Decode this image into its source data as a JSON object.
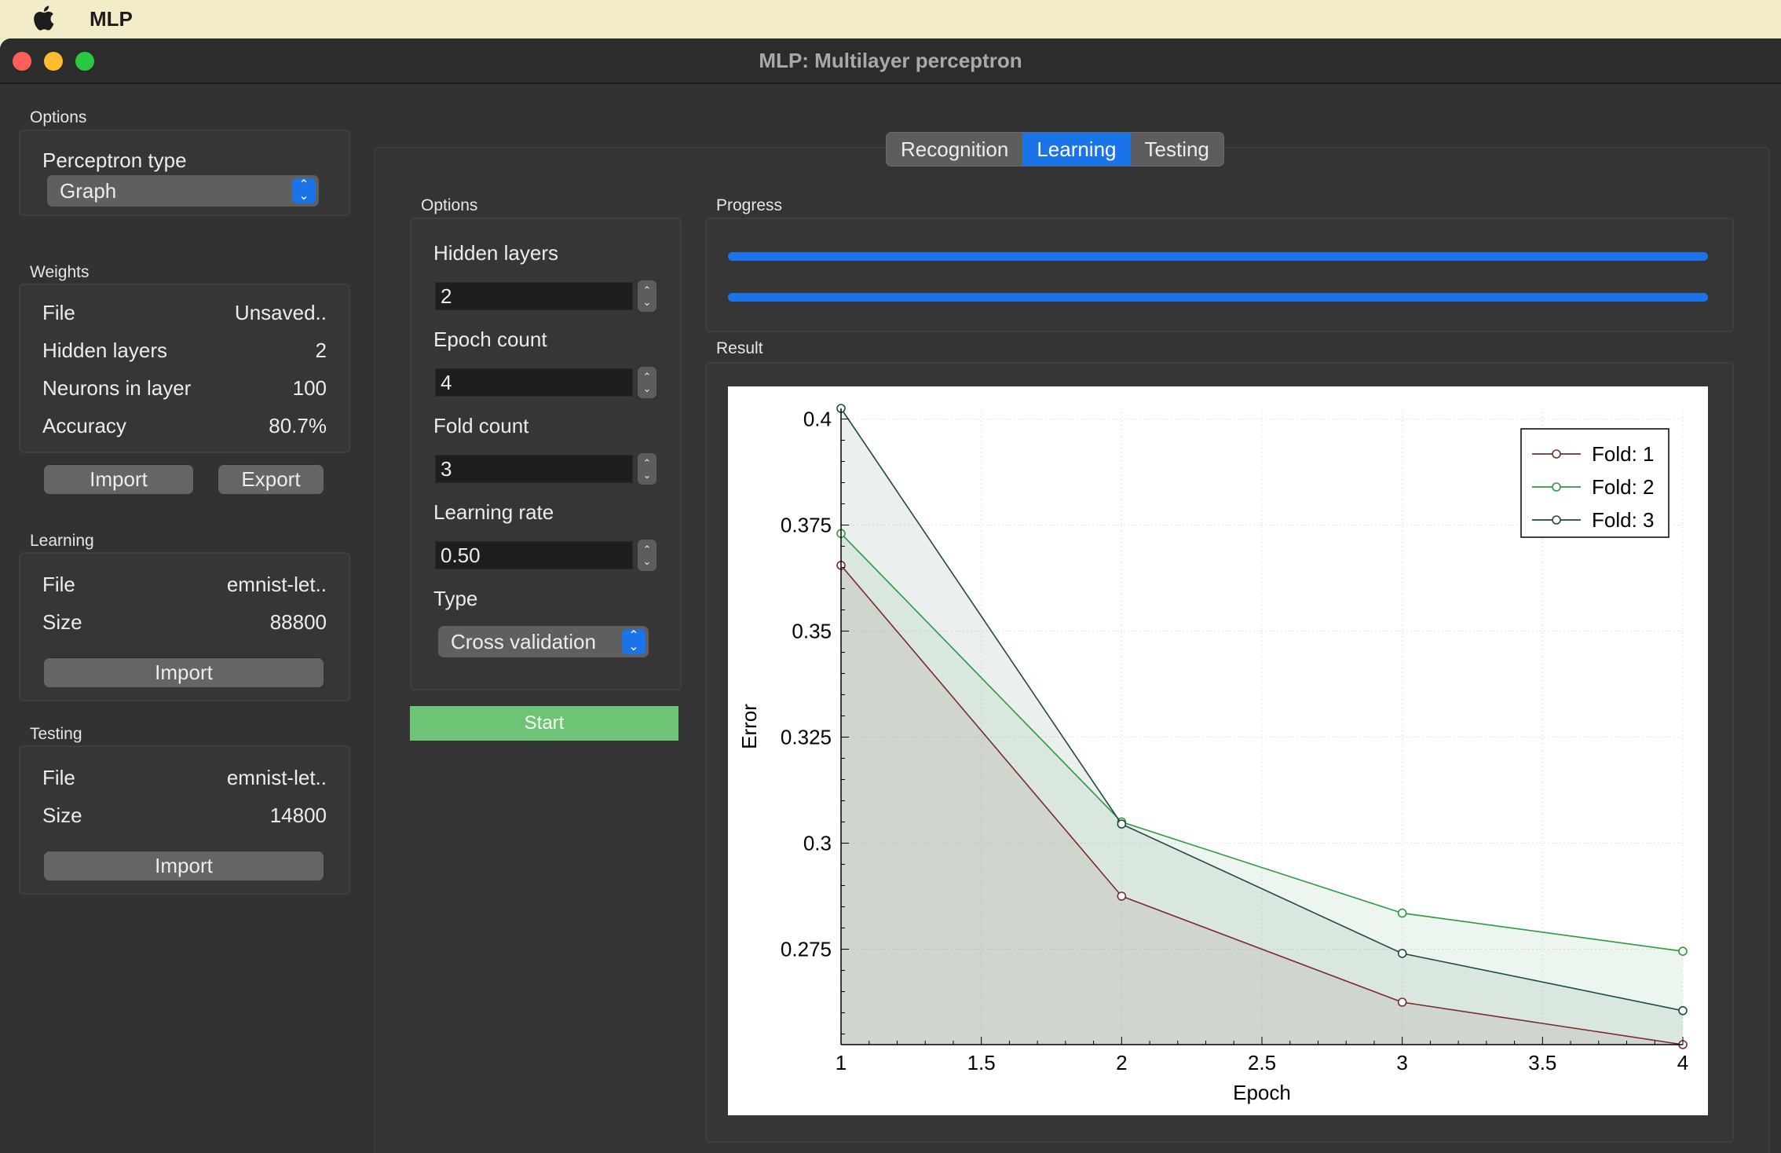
{
  "menubar": {
    "app_name": "MLP"
  },
  "window": {
    "title": "MLP: Multilayer perceptron"
  },
  "sidebar": {
    "options": {
      "group_label": "Options",
      "perceptron_type_label": "Perceptron type",
      "perceptron_type_value": "Graph"
    },
    "weights": {
      "group_label": "Weights",
      "rows": [
        {
          "label": "File",
          "value": "Unsaved.."
        },
        {
          "label": "Hidden layers",
          "value": "2"
        },
        {
          "label": "Neurons in layer",
          "value": "100"
        },
        {
          "label": "Accuracy",
          "value": "80.7%"
        }
      ],
      "import_label": "Import",
      "export_label": "Export"
    },
    "learning": {
      "group_label": "Learning",
      "rows": [
        {
          "label": "File",
          "value": "emnist-let.."
        },
        {
          "label": "Size",
          "value": "88800"
        }
      ],
      "import_label": "Import"
    },
    "testing": {
      "group_label": "Testing",
      "rows": [
        {
          "label": "File",
          "value": "emnist-let.."
        },
        {
          "label": "Size",
          "value": "14800"
        }
      ],
      "import_label": "Import"
    }
  },
  "tabs": [
    "Recognition",
    "Learning",
    "Testing"
  ],
  "active_tab": "Learning",
  "learning_options": {
    "group_label": "Options",
    "hidden_layers_label": "Hidden layers",
    "hidden_layers_value": "2",
    "epoch_count_label": "Epoch count",
    "epoch_count_value": "4",
    "fold_count_label": "Fold count",
    "fold_count_value": "3",
    "learning_rate_label": "Learning rate",
    "learning_rate_value": "0.50",
    "type_label": "Type",
    "type_value": "Cross validation",
    "start_label": "Start"
  },
  "progress": {
    "group_label": "Progress",
    "bar1_fraction": 1.0,
    "bar2_fraction": 1.0
  },
  "result": {
    "group_label": "Result"
  },
  "colors": {
    "accent": "#1a73e8",
    "start_button": "#6cc474",
    "fold1": "#7a2b2b",
    "fold2": "#2e9a3e",
    "fold3": "#1f4a44"
  },
  "chart_data": {
    "type": "line",
    "xlabel": "Epoch",
    "ylabel": "Error",
    "x": [
      1,
      2,
      3,
      4
    ],
    "xlim": [
      1,
      4
    ],
    "ylim": [
      0.2525,
      0.4025
    ],
    "xticks": [
      "1",
      "1.5",
      "2",
      "2.5",
      "3",
      "3.5",
      "4"
    ],
    "yticks": [
      "0.4",
      "0.375",
      "0.35",
      "0.325",
      "0.3",
      "0.275"
    ],
    "grid": true,
    "legend_position": "top-right",
    "series": [
      {
        "name": "Fold: 1",
        "values": [
          0.3655,
          0.2875,
          0.2625,
          0.2525
        ],
        "color": "#7a2b2b"
      },
      {
        "name": "Fold: 2",
        "values": [
          0.373,
          0.305,
          0.2835,
          0.2745
        ],
        "color": "#2e9a3e"
      },
      {
        "name": "Fold: 3",
        "values": [
          0.4025,
          0.3045,
          0.274,
          0.2605
        ],
        "color": "#1f4a44"
      }
    ]
  }
}
